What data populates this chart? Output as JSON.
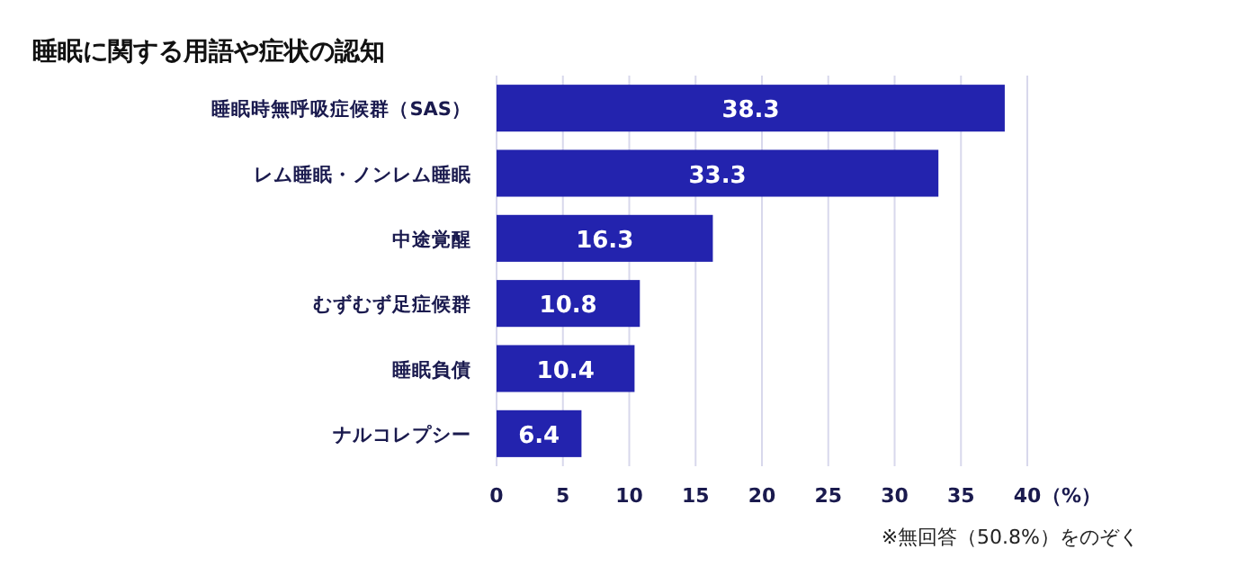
{
  "chart_data": {
    "type": "bar",
    "orientation": "horizontal",
    "title": "睡眠に関する用語や症状の認知",
    "categories": [
      "睡眠時無呼吸症候群（SAS）",
      "レム睡眠・ノンレム睡眠",
      "中途覚醒",
      "むずむず足症候群",
      "睡眠負債",
      "ナルコレプシー"
    ],
    "values": [
      38.3,
      33.3,
      16.3,
      10.8,
      10.4,
      6.4
    ],
    "color": "#2323ae",
    "xlim": [
      0,
      40
    ],
    "xticks": [
      0,
      5,
      10,
      15,
      20,
      25,
      30,
      35,
      40
    ],
    "xlabel": "（%）",
    "grid": "x",
    "data_labels": true,
    "annotations": [
      "※無回答（50.8%）をのぞく"
    ]
  }
}
